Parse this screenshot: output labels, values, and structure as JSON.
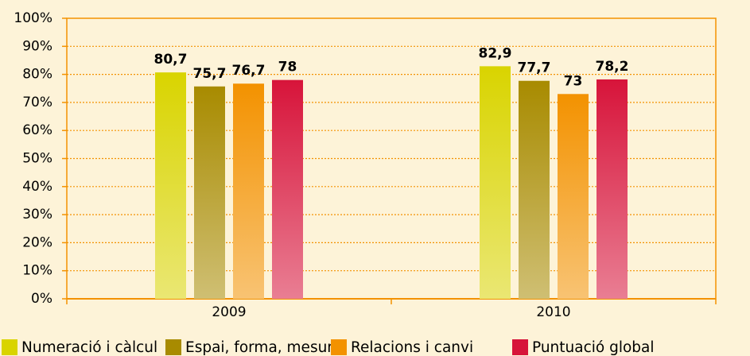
{
  "chart_data": {
    "type": "bar",
    "categories": [
      "2009",
      "2010"
    ],
    "series": [
      {
        "name": "Numeració i càlcul",
        "color": "#d9d400",
        "values": [
          80.7,
          82.9
        ],
        "value_labels": [
          "80,7",
          "82,9"
        ]
      },
      {
        "name": "Espai, forma, mesura",
        "color": "#a88b00",
        "values": [
          75.7,
          77.7
        ],
        "value_labels": [
          "75,7",
          "77,7"
        ]
      },
      {
        "name": "Relacions i canvi",
        "color": "#f39200",
        "values": [
          76.7,
          73
        ],
        "value_labels": [
          "76,7",
          "73"
        ]
      },
      {
        "name": "Puntuació global",
        "color": "#d7143a",
        "values": [
          78,
          78.2
        ],
        "value_labels": [
          "78",
          "78,2"
        ]
      }
    ],
    "ylim": [
      0,
      100
    ],
    "yticks": [
      {
        "value": 0,
        "label": "0%"
      },
      {
        "value": 10,
        "label": "10%"
      },
      {
        "value": 20,
        "label": "20%"
      },
      {
        "value": 30,
        "label": "30%"
      },
      {
        "value": 40,
        "label": "40%"
      },
      {
        "value": 50,
        "label": "50%"
      },
      {
        "value": 60,
        "label": "60%"
      },
      {
        "value": 70,
        "label": "70%"
      },
      {
        "value": 80,
        "label": "80%"
      },
      {
        "value": 90,
        "label": "90%"
      },
      {
        "value": 100,
        "label": "100%"
      }
    ],
    "grid": true,
    "legend": "bottom"
  }
}
